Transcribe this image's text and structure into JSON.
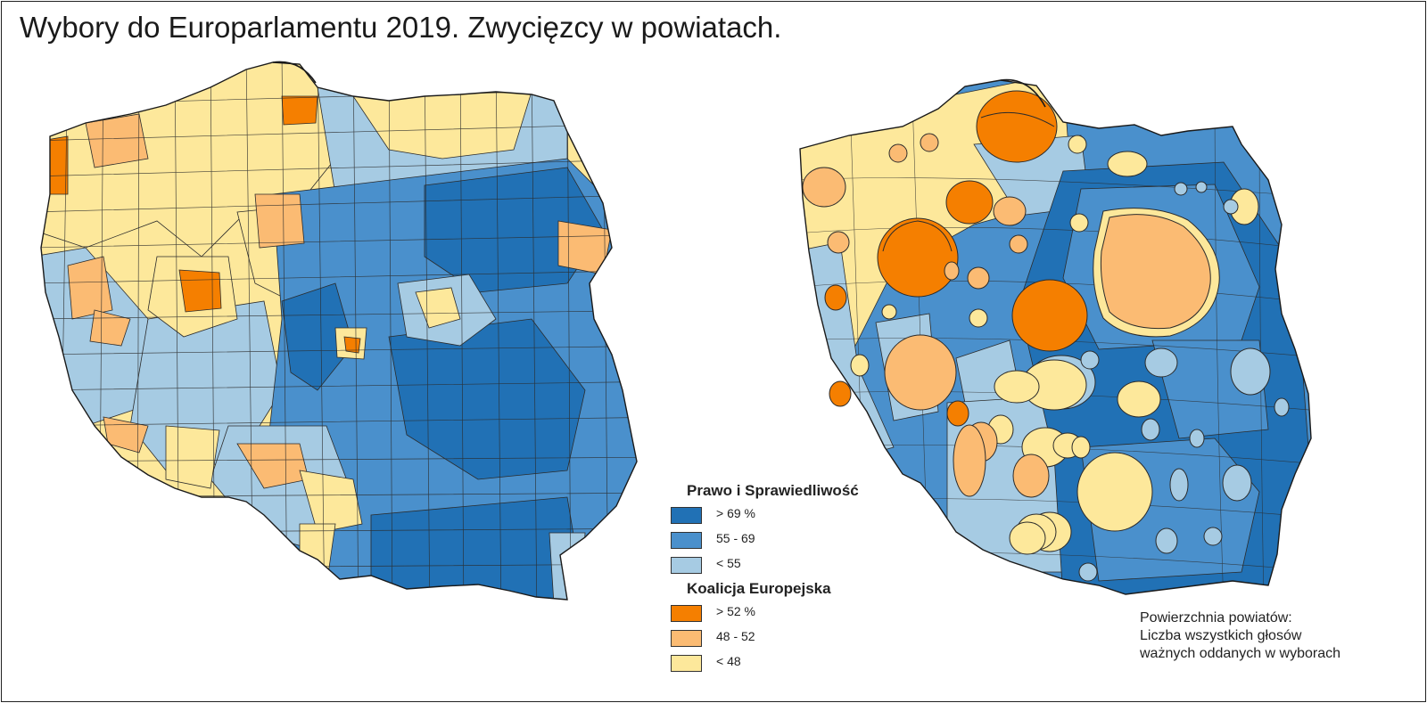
{
  "title": "Wybory do Europarlamentu 2019. Zwycięzcy w powiatach.",
  "colors": {
    "pis_high": "#2171b5",
    "pis_mid": "#4a90cc",
    "pis_low": "#a6cbe3",
    "ke_high": "#f57f00",
    "ke_mid": "#fbbb73",
    "ke_low": "#fde89b",
    "border": "#2b2b2b"
  },
  "legend": {
    "pis": {
      "title": "Prawo i Sprawiedliwość",
      "items": [
        {
          "label": "> 69 %",
          "color": "#2171b5"
        },
        {
          "label": "55 - 69",
          "color": "#4a90cc"
        },
        {
          "label": "< 55",
          "color": "#a6cbe3"
        }
      ]
    },
    "ke": {
      "title": "Koalicja Europejska",
      "items": [
        {
          "label": "> 52 %",
          "color": "#f57f00"
        },
        {
          "label": "48 - 52",
          "color": "#fbbb73"
        },
        {
          "label": "< 48",
          "color": "#fde89b"
        }
      ]
    }
  },
  "note": {
    "line1": "Powierzchnia powiatów:",
    "line2": "Liczba wszystkich głosów",
    "line3": "ważnych oddanych w wyborach"
  }
}
